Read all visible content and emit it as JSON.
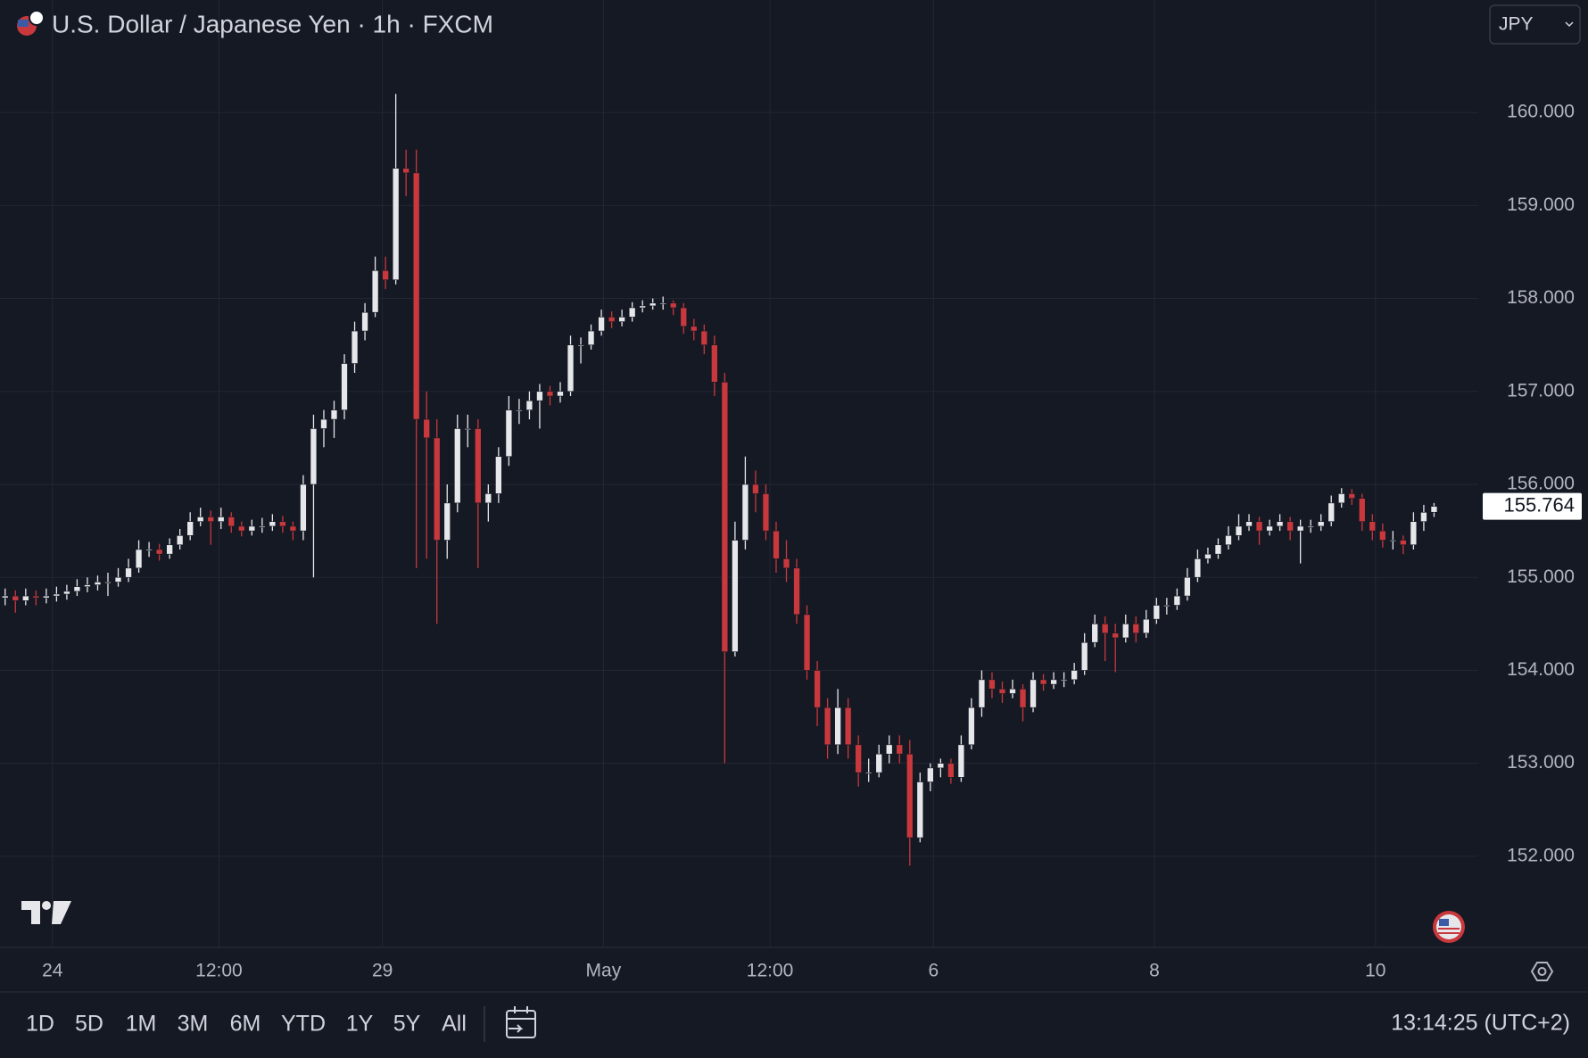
{
  "chart_data": {
    "type": "candlestick",
    "title": "U.S. Dollar / Japanese Yen · 1h · FXCM",
    "up_color": "#e6e7ea",
    "down_color": "#c8383c",
    "grid": true,
    "xlim": [
      -0.5,
      143.3
    ],
    "xticks": [
      {
        "value": 4.6,
        "label": "24"
      },
      {
        "value": 20.8,
        "label": "12:00"
      },
      {
        "value": 36.7,
        "label": "29"
      },
      {
        "value": 58.2,
        "label": "May"
      },
      {
        "value": 74.4,
        "label": "12:00"
      },
      {
        "value": 90.3,
        "label": "6"
      },
      {
        "value": 111.8,
        "label": "8"
      },
      {
        "value": 133.3,
        "label": "10"
      }
    ],
    "ylim": [
      151.03,
      161.21
    ],
    "yticks": [
      {
        "value": 152,
        "label": "152.000"
      },
      {
        "value": 153,
        "label": "153.000"
      },
      {
        "value": 154,
        "label": "154.000"
      },
      {
        "value": 155,
        "label": "155.000"
      },
      {
        "value": 156,
        "label": "156.000"
      },
      {
        "value": 157,
        "label": "157.000"
      },
      {
        "value": 158,
        "label": "158.000"
      },
      {
        "value": 159,
        "label": "159.000"
      },
      {
        "value": 160,
        "label": "160.000"
      }
    ],
    "last_price": 155.764,
    "ohlc": [
      [
        154.78,
        154.88,
        154.7,
        154.8
      ],
      [
        154.8,
        154.86,
        154.62,
        154.75
      ],
      [
        154.75,
        154.88,
        154.7,
        154.8
      ],
      [
        154.8,
        154.86,
        154.7,
        154.78
      ],
      [
        154.78,
        154.88,
        154.72,
        154.8
      ],
      [
        154.8,
        154.9,
        154.74,
        154.82
      ],
      [
        154.82,
        154.92,
        154.76,
        154.85
      ],
      [
        154.85,
        154.98,
        154.8,
        154.9
      ],
      [
        154.9,
        155.0,
        154.84,
        154.92
      ],
      [
        154.92,
        155.02,
        154.86,
        154.95
      ],
      [
        154.95,
        155.05,
        154.8,
        154.95
      ],
      [
        154.95,
        155.1,
        154.9,
        155.0
      ],
      [
        155.0,
        155.2,
        154.95,
        155.1
      ],
      [
        155.1,
        155.4,
        155.05,
        155.3
      ],
      [
        155.3,
        155.38,
        155.22,
        155.3
      ],
      [
        155.3,
        155.36,
        155.18,
        155.25
      ],
      [
        155.25,
        155.42,
        155.2,
        155.35
      ],
      [
        155.35,
        155.52,
        155.3,
        155.45
      ],
      [
        155.45,
        155.7,
        155.4,
        155.6
      ],
      [
        155.6,
        155.75,
        155.55,
        155.65
      ],
      [
        155.65,
        155.72,
        155.35,
        155.6
      ],
      [
        155.6,
        155.75,
        155.52,
        155.65
      ],
      [
        155.65,
        155.7,
        155.48,
        155.55
      ],
      [
        155.55,
        155.6,
        155.44,
        155.5
      ],
      [
        155.5,
        155.62,
        155.45,
        155.55
      ],
      [
        155.55,
        155.64,
        155.48,
        155.55
      ],
      [
        155.55,
        155.68,
        155.5,
        155.6
      ],
      [
        155.6,
        155.66,
        155.48,
        155.55
      ],
      [
        155.55,
        155.6,
        155.4,
        155.5
      ],
      [
        155.5,
        156.1,
        155.4,
        156.0
      ],
      [
        156.0,
        156.75,
        155.0,
        156.6
      ],
      [
        156.6,
        156.8,
        156.4,
        156.7
      ],
      [
        156.7,
        156.9,
        156.5,
        156.8
      ],
      [
        156.8,
        157.4,
        156.7,
        157.3
      ],
      [
        157.3,
        157.75,
        157.2,
        157.65
      ],
      [
        157.65,
        157.95,
        157.55,
        157.85
      ],
      [
        157.85,
        158.45,
        157.8,
        158.3
      ],
      [
        158.3,
        158.45,
        158.1,
        158.2
      ],
      [
        158.2,
        160.2,
        158.15,
        159.4
      ],
      [
        159.4,
        159.6,
        159.1,
        159.35
      ],
      [
        159.35,
        159.6,
        155.1,
        156.7
      ],
      [
        156.7,
        157.0,
        155.2,
        156.5
      ],
      [
        156.5,
        156.7,
        154.5,
        155.4
      ],
      [
        155.4,
        156.0,
        155.2,
        155.8
      ],
      [
        155.8,
        156.75,
        155.7,
        156.6
      ],
      [
        156.6,
        156.75,
        156.4,
        156.6
      ],
      [
        156.6,
        156.7,
        155.1,
        155.8
      ],
      [
        155.8,
        156.0,
        155.6,
        155.9
      ],
      [
        155.9,
        156.4,
        155.8,
        156.3
      ],
      [
        156.3,
        156.95,
        156.2,
        156.8
      ],
      [
        156.8,
        156.92,
        156.65,
        156.8
      ],
      [
        156.8,
        157.0,
        156.7,
        156.9
      ],
      [
        156.9,
        157.08,
        156.6,
        157.0
      ],
      [
        157.0,
        157.06,
        156.85,
        156.95
      ],
      [
        156.95,
        157.1,
        156.88,
        157.0
      ],
      [
        157.0,
        157.6,
        156.95,
        157.5
      ],
      [
        157.5,
        157.58,
        157.3,
        157.5
      ],
      [
        157.5,
        157.72,
        157.45,
        157.65
      ],
      [
        157.65,
        157.88,
        157.6,
        157.8
      ],
      [
        157.8,
        157.86,
        157.68,
        157.75
      ],
      [
        157.75,
        157.88,
        157.7,
        157.8
      ],
      [
        157.8,
        157.96,
        157.75,
        157.9
      ],
      [
        157.9,
        157.98,
        157.85,
        157.92
      ],
      [
        157.92,
        158.0,
        157.88,
        157.95
      ],
      [
        157.95,
        158.02,
        157.88,
        157.95
      ],
      [
        157.95,
        157.98,
        157.82,
        157.9
      ],
      [
        157.9,
        157.95,
        157.62,
        157.7
      ],
      [
        157.7,
        157.78,
        157.55,
        157.65
      ],
      [
        157.65,
        157.72,
        157.4,
        157.5
      ],
      [
        157.5,
        157.6,
        156.95,
        157.1
      ],
      [
        157.1,
        157.2,
        153.0,
        154.2
      ],
      [
        154.2,
        155.6,
        154.15,
        155.4
      ],
      [
        155.4,
        156.3,
        155.3,
        156.0
      ],
      [
        156.0,
        156.15,
        155.7,
        155.9
      ],
      [
        155.9,
        156.0,
        155.4,
        155.5
      ],
      [
        155.5,
        155.6,
        155.05,
        155.2
      ],
      [
        155.2,
        155.4,
        154.95,
        155.1
      ],
      [
        155.1,
        155.2,
        154.5,
        154.6
      ],
      [
        154.6,
        154.7,
        153.9,
        154.0
      ],
      [
        154.0,
        154.1,
        153.4,
        153.6
      ],
      [
        153.6,
        153.7,
        153.05,
        153.2
      ],
      [
        153.2,
        153.8,
        153.1,
        153.6
      ],
      [
        153.6,
        153.7,
        153.05,
        153.2
      ],
      [
        153.2,
        153.3,
        152.75,
        152.9
      ],
      [
        152.9,
        153.05,
        152.8,
        152.9
      ],
      [
        152.9,
        153.2,
        152.85,
        153.1
      ],
      [
        153.1,
        153.3,
        153.0,
        153.2
      ],
      [
        153.2,
        153.3,
        153.0,
        153.1
      ],
      [
        153.1,
        153.25,
        151.9,
        152.2
      ],
      [
        152.2,
        152.9,
        152.15,
        152.8
      ],
      [
        152.8,
        153.0,
        152.7,
        152.95
      ],
      [
        152.95,
        153.05,
        152.85,
        153.0
      ],
      [
        153.0,
        153.05,
        152.78,
        152.85
      ],
      [
        152.85,
        153.3,
        152.8,
        153.2
      ],
      [
        153.2,
        153.7,
        153.15,
        153.6
      ],
      [
        153.6,
        154.0,
        153.5,
        153.9
      ],
      [
        153.9,
        153.98,
        153.7,
        153.8
      ],
      [
        153.8,
        153.88,
        153.65,
        153.75
      ],
      [
        153.75,
        153.9,
        153.7,
        153.8
      ],
      [
        153.8,
        153.85,
        153.45,
        153.6
      ],
      [
        153.6,
        153.98,
        153.55,
        153.9
      ],
      [
        153.9,
        153.96,
        153.78,
        153.85
      ],
      [
        153.85,
        153.98,
        153.8,
        153.9
      ],
      [
        153.9,
        153.98,
        153.82,
        153.9
      ],
      [
        153.9,
        154.08,
        153.85,
        154.0
      ],
      [
        154.0,
        154.4,
        153.95,
        154.3
      ],
      [
        154.3,
        154.6,
        154.25,
        154.5
      ],
      [
        154.5,
        154.58,
        154.1,
        154.4
      ],
      [
        154.4,
        154.5,
        153.98,
        154.35
      ],
      [
        154.35,
        154.6,
        154.3,
        154.5
      ],
      [
        154.5,
        154.58,
        154.3,
        154.4
      ],
      [
        154.4,
        154.65,
        154.35,
        154.55
      ],
      [
        154.55,
        154.78,
        154.5,
        154.7
      ],
      [
        154.7,
        154.78,
        154.6,
        154.7
      ],
      [
        154.7,
        154.88,
        154.65,
        154.8
      ],
      [
        154.8,
        155.1,
        154.75,
        155.0
      ],
      [
        155.0,
        155.3,
        154.95,
        155.2
      ],
      [
        155.2,
        155.32,
        155.15,
        155.25
      ],
      [
        155.25,
        155.42,
        155.2,
        155.35
      ],
      [
        155.35,
        155.55,
        155.3,
        155.45
      ],
      [
        155.45,
        155.68,
        155.4,
        155.55
      ],
      [
        155.55,
        155.68,
        155.5,
        155.6
      ],
      [
        155.6,
        155.65,
        155.35,
        155.5
      ],
      [
        155.5,
        155.62,
        155.45,
        155.55
      ],
      [
        155.55,
        155.68,
        155.5,
        155.6
      ],
      [
        155.6,
        155.65,
        155.4,
        155.5
      ],
      [
        155.5,
        155.62,
        155.15,
        155.55
      ],
      [
        155.55,
        155.62,
        155.48,
        155.55
      ],
      [
        155.55,
        155.68,
        155.5,
        155.6
      ],
      [
        155.6,
        155.88,
        155.55,
        155.8
      ],
      [
        155.8,
        155.96,
        155.75,
        155.9
      ],
      [
        155.9,
        155.95,
        155.78,
        155.85
      ],
      [
        155.85,
        155.9,
        155.5,
        155.6
      ],
      [
        155.6,
        155.68,
        155.4,
        155.5
      ],
      [
        155.5,
        155.58,
        155.32,
        155.4
      ],
      [
        155.4,
        155.5,
        155.3,
        155.4
      ],
      [
        155.4,
        155.45,
        155.25,
        155.35
      ],
      [
        155.35,
        155.7,
        155.3,
        155.6
      ],
      [
        155.6,
        155.78,
        155.5,
        155.7
      ],
      [
        155.7,
        155.8,
        155.65,
        155.764
      ]
    ]
  },
  "ui": {
    "currency": "JPY",
    "ranges": [
      "1D",
      "5D",
      "1M",
      "3M",
      "6M",
      "YTD",
      "1Y",
      "5Y",
      "All"
    ],
    "clock": "13:14:25 (UTC+2)"
  }
}
